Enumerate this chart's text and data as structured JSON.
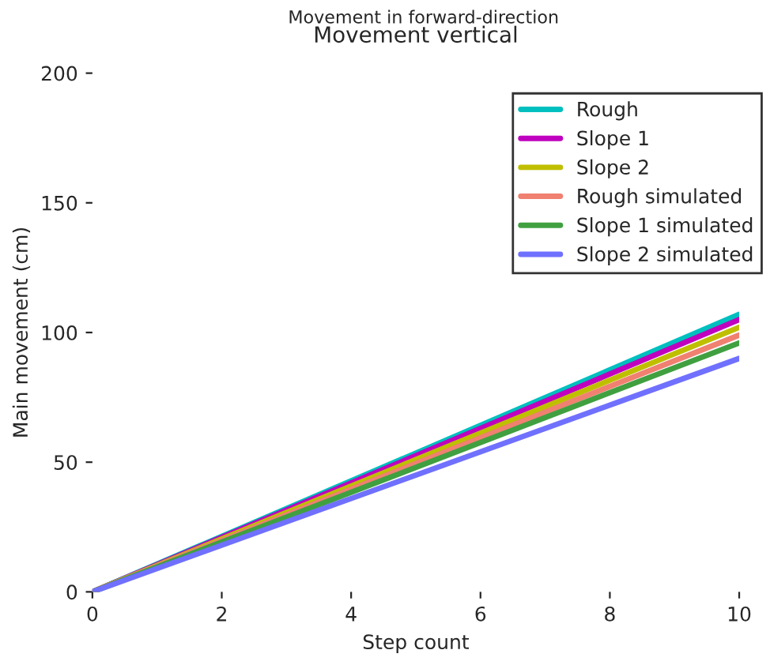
{
  "chart_data": {
    "type": "line",
    "title": "Movement vertical",
    "subtitle": "Movement in forward-direction",
    "xlabel": "Step count",
    "ylabel": "Main movement (cm)",
    "x": [
      0,
      10
    ],
    "series": [
      {
        "name": "Rough",
        "color": "#00bfbf",
        "values": [
          0,
          107
        ]
      },
      {
        "name": "Slope 1",
        "color": "#bf00bf",
        "values": [
          0,
          105
        ]
      },
      {
        "name": "Slope 2",
        "color": "#bfbf00",
        "values": [
          0,
          102
        ]
      },
      {
        "name": "Rough simulated",
        "color": "#f08070",
        "values": [
          0,
          99
        ]
      },
      {
        "name": "Slope 1 simulated",
        "color": "#40a040",
        "values": [
          0,
          96
        ]
      },
      {
        "name": "Slope 2 simulated",
        "color": "#7070ff",
        "values": [
          0,
          90
        ]
      }
    ],
    "xlim": [
      0,
      10
    ],
    "xticks": [
      0,
      2,
      4,
      6,
      8,
      10
    ],
    "ylim": [
      0,
      200
    ],
    "yticks": [
      0,
      50,
      100,
      150,
      200
    ],
    "legend": "top right",
    "grid": false,
    "line_style": "solid",
    "marker": "none"
  }
}
